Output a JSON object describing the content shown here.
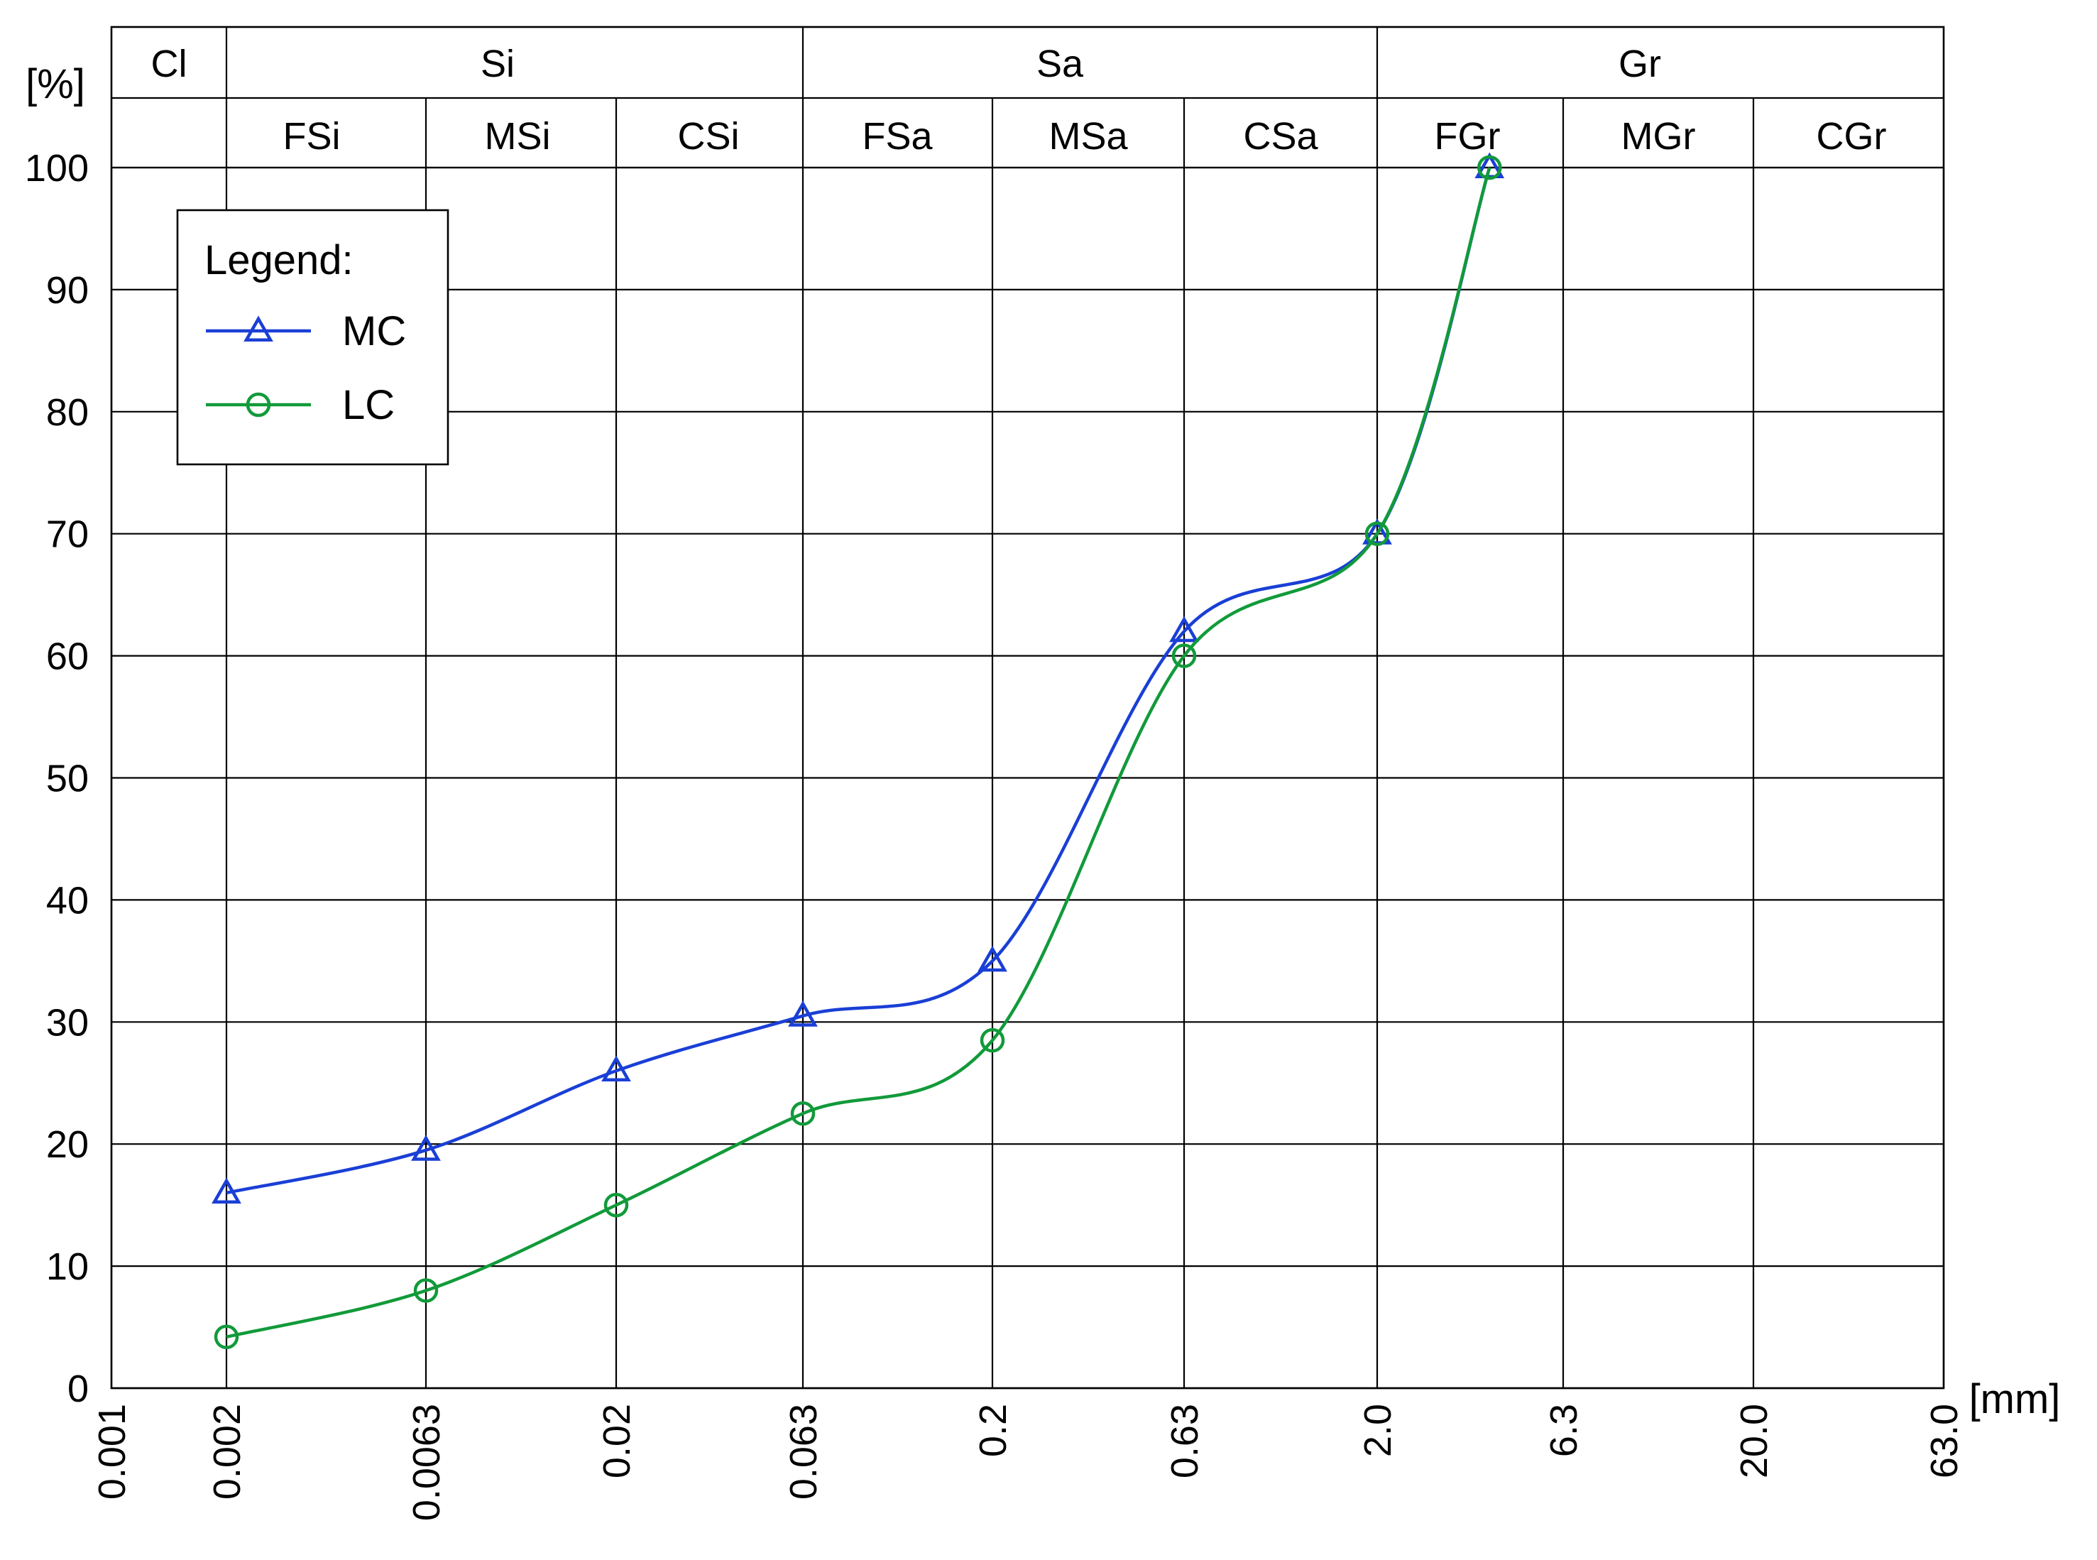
{
  "chart_data": {
    "type": "line",
    "title": "",
    "ylabel": "[%]",
    "xlabel": "[mm]",
    "x_scale": "log",
    "ylim": [
      0,
      100
    ],
    "y_ticks": [
      "0",
      "10",
      "20",
      "30",
      "40",
      "50",
      "60",
      "70",
      "80",
      "90",
      "100"
    ],
    "x_ticks": [
      "0.001",
      "0.002",
      "0.0063",
      "0.02",
      "0.063",
      "0.2",
      "0.63",
      "2.0",
      "6.3",
      "20.0",
      "63.0"
    ],
    "fraction_groups": [
      "Cl",
      "Si",
      "Sa",
      "Gr"
    ],
    "fraction_subgroups": [
      "FSi",
      "MSi",
      "CSi",
      "FSa",
      "MSa",
      "CSa",
      "FGr",
      "MGr",
      "CGr"
    ],
    "grid": true,
    "legend": {
      "title": "Legend:",
      "position": "top-left"
    },
    "series": [
      {
        "name": "MC",
        "color": "#1a3fd6",
        "marker": "triangle",
        "x": [
          0.002,
          0.0063,
          0.02,
          0.063,
          0.2,
          0.63,
          2.0,
          4.0
        ],
        "y": [
          16,
          19.5,
          26,
          30.5,
          35,
          62,
          70,
          100
        ]
      },
      {
        "name": "LC",
        "color": "#119a3a",
        "marker": "circle",
        "x": [
          0.002,
          0.0063,
          0.02,
          0.063,
          0.2,
          0.63,
          2.0,
          4.0
        ],
        "y": [
          4.2,
          8,
          15,
          22.5,
          28.5,
          60,
          70,
          100
        ]
      }
    ]
  }
}
